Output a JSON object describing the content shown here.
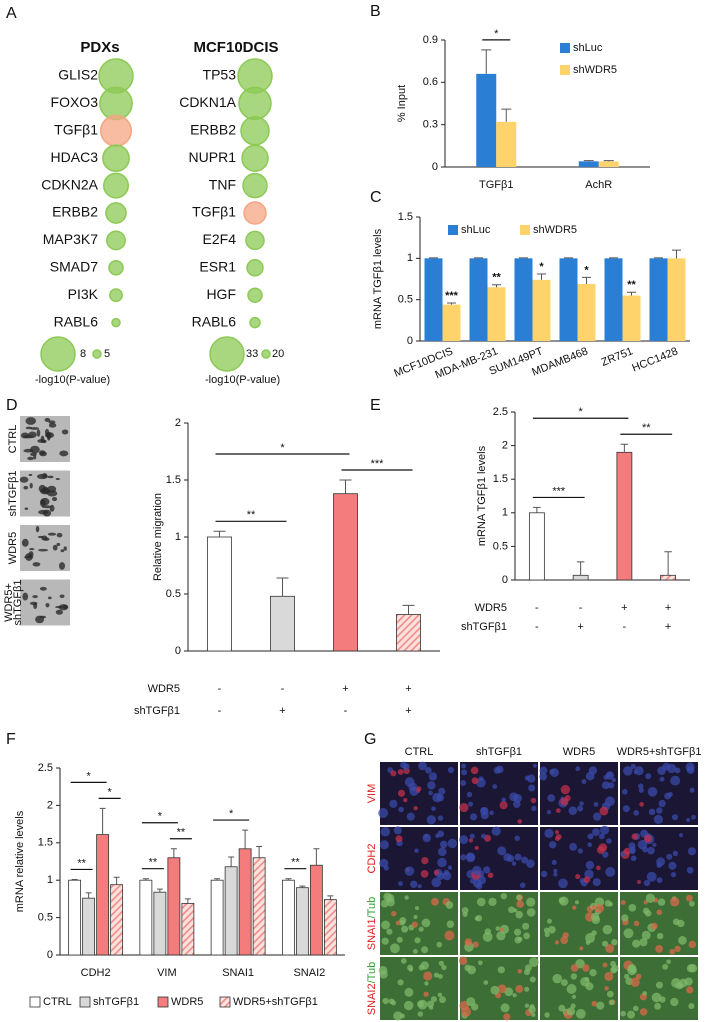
{
  "chart_data": [
    {
      "type": "bubble-list",
      "panel": "A",
      "groups": [
        {
          "title": "PDXs",
          "categories": [
            "GLIS2",
            "FOXO3",
            "TGFβ1",
            "HDAC3",
            "CDKN2A",
            "ERBB2",
            "MAP3K7",
            "SMAD7",
            "PI3K",
            "RABL6"
          ],
          "values": [
            8,
            7.8,
            7.6,
            7.1,
            6.9,
            6.4,
            6.2,
            5.7,
            5.5,
            5
          ],
          "colors": [
            "#8cc955",
            "#8cc955",
            "#f4a582",
            "#8cc955",
            "#8cc955",
            "#8cc955",
            "#8cc955",
            "#8cc955",
            "#8cc955",
            "#8cc955"
          ],
          "legend_sizes": [
            8,
            5
          ],
          "size_label": "-log10(P-value)"
        },
        {
          "title": "MCF10DCIS",
          "categories": [
            "TP53",
            "CDKN1A",
            "ERBB2",
            "NUPR1",
            "TNF",
            "TGFβ1",
            "E2F4",
            "ESR1",
            "HGF",
            "RABL6"
          ],
          "values": [
            33,
            32,
            30,
            29,
            28,
            27,
            25,
            24,
            23,
            21
          ],
          "colors": [
            "#8cc955",
            "#8cc955",
            "#8cc955",
            "#8cc955",
            "#8cc955",
            "#f4a582",
            "#8cc955",
            "#8cc955",
            "#8cc955",
            "#8cc955"
          ],
          "legend_sizes": [
            33,
            20
          ],
          "size_label": "-log10(P-value)"
        }
      ]
    },
    {
      "type": "bar",
      "panel": "B",
      "ylabel": "% Input",
      "categories": [
        "TGFβ1",
        "AchR"
      ],
      "series": [
        {
          "name": "shLuc",
          "color": "#2a7fd4",
          "values": [
            0.66,
            0.04
          ],
          "errors": [
            0.17,
            0.005
          ]
        },
        {
          "name": "shWDR5",
          "color": "#ffd36b",
          "values": [
            0.32,
            0.04
          ],
          "errors": [
            0.09,
            0.005
          ]
        }
      ],
      "ylim": [
        0,
        0.9
      ],
      "yticks": [
        0,
        0.3,
        0.6,
        0.9
      ],
      "brackets": [
        {
          "text": "*",
          "category": 0,
          "bars": [
            0,
            1
          ]
        }
      ]
    },
    {
      "type": "bar",
      "panel": "C",
      "ylabel": "mRNA TGFβ1 levels",
      "categories": [
        "MCF10DCIS",
        "MDA-MB-231",
        "SUM149PT",
        "MDAMB468",
        "ZR751",
        "HCC1428"
      ],
      "series": [
        {
          "name": "shLuc",
          "color": "#2a7fd4",
          "values": [
            1,
            1,
            1,
            1,
            1,
            1
          ],
          "errors": [
            0.005,
            0.005,
            0.005,
            0.005,
            0.005,
            0.005
          ]
        },
        {
          "name": "shWDR5",
          "color": "#ffd36b",
          "values": [
            0.44,
            0.65,
            0.74,
            0.69,
            0.55,
            1.0
          ],
          "errors": [
            0.02,
            0.03,
            0.07,
            0.08,
            0.04,
            0.1
          ],
          "stars": [
            "***",
            "**",
            "*",
            "*",
            "**",
            null
          ]
        }
      ],
      "ylim": [
        0,
        1.5
      ],
      "yticks": [
        0,
        0.5,
        1,
        1.5
      ]
    },
    {
      "type": "bar-conditions",
      "panel": "D",
      "ylabel": "Relative migration",
      "image_labels": [
        [
          "CTRL"
        ],
        [
          "shTGFβ1"
        ],
        [
          "WDR5"
        ],
        [
          "WDR5+",
          "shTGFβ1"
        ]
      ],
      "values": [
        1,
        0.48,
        1.38,
        0.32
      ],
      "errors": [
        0.05,
        0.16,
        0.12,
        0.08
      ],
      "colors": [
        "#ffffff",
        "#d9d9d9",
        "#f47c7c",
        "#f47c7c"
      ],
      "hatched": [
        false,
        false,
        false,
        true
      ],
      "bar_edge": "#333333",
      "conditions": [
        {
          "name": "WDR5",
          "values": [
            "-",
            "-",
            "+",
            "+"
          ]
        },
        {
          "name": "shTGFβ1",
          "values": [
            "-",
            "+",
            "-",
            "+"
          ]
        }
      ],
      "ylim": [
        0,
        2
      ],
      "yticks": [
        0,
        0.5,
        1,
        1.5,
        2
      ],
      "brackets": [
        {
          "text": "**",
          "bars": [
            0,
            1
          ]
        },
        {
          "text": "*",
          "bars": [
            0,
            2
          ]
        },
        {
          "text": "***",
          "bars": [
            2,
            3
          ]
        }
      ]
    },
    {
      "type": "bar-conditions",
      "panel": "E",
      "ylabel": "mRNA TGFβ1 levels",
      "values": [
        1,
        0.07,
        1.9,
        0.07
      ],
      "errors": [
        0.08,
        0.2,
        0.12,
        0.35
      ],
      "colors": [
        "#ffffff",
        "#d9d9d9",
        "#f47c7c",
        "#f47c7c"
      ],
      "hatched": [
        false,
        false,
        false,
        true
      ],
      "bar_edge": "#333333",
      "conditions": [
        {
          "name": "WDR5",
          "values": [
            "-",
            "-",
            "+",
            "+"
          ]
        },
        {
          "name": "shTGFβ1",
          "values": [
            "-",
            "+",
            "-",
            "+"
          ]
        }
      ],
      "ylim": [
        0,
        2.5
      ],
      "yticks": [
        0,
        0.5,
        1,
        1.5,
        2,
        2.5
      ],
      "brackets": [
        {
          "text": "***",
          "bars": [
            0,
            1
          ]
        },
        {
          "text": "*",
          "bars": [
            0,
            2
          ]
        },
        {
          "text": "**",
          "bars": [
            2,
            3
          ]
        }
      ]
    },
    {
      "type": "bar",
      "panel": "F",
      "ylabel": "mRNA relative levels",
      "categories": [
        "CDH2",
        "VIM",
        "SNAI1",
        "SNAI2"
      ],
      "series": [
        {
          "name": "CTRL",
          "color": "#ffffff",
          "values": [
            1,
            1,
            1,
            1
          ],
          "errors": [
            0.01,
            0.02,
            0.02,
            0.02
          ]
        },
        {
          "name": "shTGFβ1",
          "color": "#d9d9d9",
          "values": [
            0.76,
            0.84,
            1.18,
            0.9
          ],
          "errors": [
            0.07,
            0.04,
            0.13,
            0.02
          ]
        },
        {
          "name": "WDR5",
          "color": "#f47c7c",
          "values": [
            1.61,
            1.3,
            1.42,
            1.2
          ],
          "errors": [
            0.35,
            0.12,
            0.25,
            0.22
          ]
        },
        {
          "name": "WDR5+shTGFβ1",
          "color": "#f47c7c",
          "hatched": true,
          "values": [
            0.94,
            0.69,
            1.3,
            0.74
          ],
          "errors": [
            0.1,
            0.06,
            0.15,
            0.05
          ]
        }
      ],
      "bar_edge": "#333333",
      "ylim": [
        0,
        2.5
      ],
      "yticks": [
        0,
        0.5,
        1,
        1.5,
        2,
        2.5
      ],
      "brackets": [
        {
          "text": "**",
          "category": 0,
          "bars": [
            0,
            1
          ]
        },
        {
          "text": "*",
          "category": 0,
          "bars": [
            0,
            2
          ]
        },
        {
          "text": "*",
          "category": 0,
          "bars": [
            2,
            3
          ]
        },
        {
          "text": "**",
          "category": 1,
          "bars": [
            0,
            1
          ]
        },
        {
          "text": "*",
          "category": 1,
          "bars": [
            0,
            2
          ]
        },
        {
          "text": "**",
          "category": 1,
          "bars": [
            2,
            3
          ]
        },
        {
          "text": "*",
          "category": 2,
          "bars": [
            0,
            2
          ]
        },
        {
          "text": "**",
          "category": 3,
          "bars": [
            0,
            1
          ]
        }
      ]
    },
    {
      "type": "image-grid",
      "panel": "G",
      "columns": [
        "CTRL",
        "shTGFβ1",
        "WDR5",
        "WDR5+shTGFβ1"
      ],
      "rows": [
        [
          "VIM"
        ],
        [
          "CDH2"
        ],
        [
          "SNAI1",
          "/Tub"
        ],
        [
          "SNAI2",
          "/Tub"
        ]
      ],
      "row_colors": [
        "#e02020",
        "#2e9e2e"
      ]
    }
  ]
}
